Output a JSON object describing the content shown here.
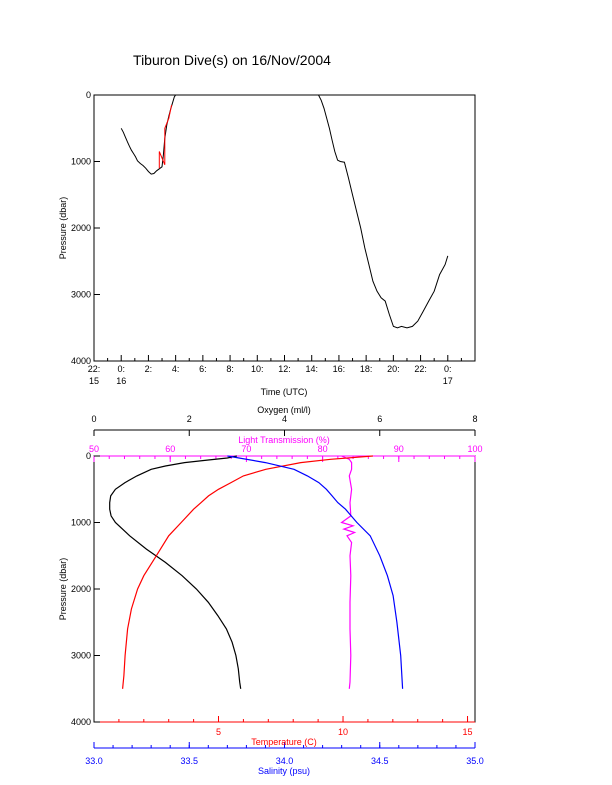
{
  "chart_data": [
    {
      "type": "line",
      "title": "Tiburon Dive(s) on 16/Nov/2004",
      "xlabel": "Time (UTC)",
      "ylabel": "Pressure (dbar)",
      "x_unit": "hours since 0:00 UTC 16/Nov/2004",
      "xlim": [
        -2,
        26
      ],
      "ylim": [
        4000,
        0
      ],
      "x_tick_labels": [
        {
          "x": -2,
          "line1": "22:",
          "line2": "15"
        },
        {
          "x": 0,
          "line1": "0:",
          "line2": "16"
        },
        {
          "x": 2,
          "line1": "2:",
          "line2": ""
        },
        {
          "x": 4,
          "line1": "4:",
          "line2": ""
        },
        {
          "x": 6,
          "line1": "6:",
          "line2": ""
        },
        {
          "x": 8,
          "line1": "8:",
          "line2": ""
        },
        {
          "x": 10,
          "line1": "10:",
          "line2": ""
        },
        {
          "x": 12,
          "line1": "12:",
          "line2": ""
        },
        {
          "x": 14,
          "line1": "14:",
          "line2": ""
        },
        {
          "x": 16,
          "line1": "16:",
          "line2": ""
        },
        {
          "x": 18,
          "line1": "18:",
          "line2": ""
        },
        {
          "x": 20,
          "line1": "20:",
          "line2": ""
        },
        {
          "x": 22,
          "line1": "22:",
          "line2": ""
        },
        {
          "x": 24,
          "line1": "0:",
          "line2": "17"
        }
      ],
      "y_ticks": [
        "0",
        "1000",
        "2000",
        "3000",
        "4000"
      ],
      "series": [
        {
          "color": "#000000",
          "x": [
            0.0,
            0.15,
            0.3,
            0.45,
            0.6,
            0.75,
            0.9,
            1.05,
            1.2,
            1.4,
            1.6,
            1.8,
            2.0,
            2.2,
            2.4,
            2.6,
            2.8,
            3.0,
            3.1,
            3.2,
            3.35,
            3.5,
            3.65,
            3.8,
            3.9,
            4.0
          ],
          "y": [
            500,
            560,
            630,
            700,
            770,
            830,
            880,
            930,
            990,
            1030,
            1060,
            1100,
            1150,
            1190,
            1180,
            1140,
            1110,
            1080,
            900,
            650,
            450,
            320,
            200,
            100,
            30,
            0
          ]
        },
        {
          "color": "#000000",
          "x": [
            4.0,
            14.5,
            14.7,
            14.9,
            15.1,
            15.3,
            15.5,
            15.7,
            15.9,
            16.1,
            16.4,
            16.7,
            17.0,
            17.3,
            17.6,
            17.9,
            18.2,
            18.5,
            18.8,
            19.1,
            19.4,
            19.7,
            20.0,
            20.3,
            20.6,
            21.0,
            21.4,
            21.8,
            22.2,
            22.6,
            23.0,
            23.4,
            23.8,
            24.0
          ],
          "y": [
            0,
            0,
            80,
            200,
            350,
            500,
            680,
            850,
            980,
            1000,
            1010,
            1250,
            1500,
            1750,
            2000,
            2300,
            2550,
            2800,
            2950,
            3050,
            3100,
            3300,
            3480,
            3500,
            3480,
            3500,
            3480,
            3400,
            3250,
            3100,
            2950,
            2700,
            2550,
            2420
          ]
        },
        {
          "color": "#ff0000",
          "x": [
            2.8,
            2.8,
            3.2,
            3.2,
            3.5,
            3.7
          ],
          "y": [
            1100,
            850,
            1050,
            500,
            350,
            150
          ]
        }
      ]
    },
    {
      "type": "line",
      "ylabel": "Pressure (dbar)",
      "ylim": [
        4000,
        0
      ],
      "y_ticks": [
        "0",
        "1000",
        "2000",
        "3000",
        "4000"
      ],
      "axes": {
        "oxygen": {
          "label": "Oxygen (ml/l)",
          "range": [
            0,
            8
          ],
          "ticks": [
            "0",
            "2",
            "4",
            "6",
            "8"
          ],
          "color": "#000000"
        },
        "light": {
          "label": "Light Transmission (%)",
          "range": [
            50,
            100
          ],
          "ticks": [
            "50",
            "60",
            "70",
            "80",
            "90",
            "100"
          ],
          "color": "#ff00ff"
        },
        "temperature": {
          "label": "Temperature (C)",
          "range": [
            0,
            15.3
          ],
          "ticks": [
            "5",
            "10",
            "15"
          ],
          "tick_values": [
            5,
            10,
            15
          ],
          "color": "#ff0000"
        },
        "salinity": {
          "label": "Salinity (psu)",
          "range": [
            33.0,
            35.0
          ],
          "ticks": [
            "33.0",
            "33.5",
            "34.0",
            "34.5",
            "35.0"
          ],
          "color": "#0000ff"
        }
      },
      "series": [
        {
          "axis": "oxygen",
          "color": "#000000",
          "p": [
            0,
            30,
            60,
            100,
            150,
            200,
            300,
            400,
            500,
            600,
            700,
            800,
            900,
            1000,
            1200,
            1400,
            1600,
            1800,
            2000,
            2200,
            2400,
            2600,
            2800,
            3000,
            3200,
            3400,
            3500
          ],
          "values": [
            3.0,
            2.8,
            2.4,
            1.9,
            1.5,
            1.2,
            0.9,
            0.65,
            0.45,
            0.35,
            0.33,
            0.33,
            0.36,
            0.45,
            0.75,
            1.1,
            1.5,
            1.85,
            2.15,
            2.4,
            2.6,
            2.78,
            2.9,
            2.98,
            3.03,
            3.06,
            3.08
          ]
        },
        {
          "axis": "light",
          "color": "#ff00ff",
          "p": [
            0,
            50,
            100,
            200,
            300,
            500,
            700,
            900,
            1000,
            1050,
            1100,
            1150,
            1200,
            1300,
            1500,
            1800,
            2200,
            2600,
            3000,
            3400,
            3500
          ],
          "values": [
            82.5,
            83.5,
            83.8,
            83.8,
            83.5,
            83.8,
            83.6,
            83.7,
            82.5,
            84,
            82.8,
            84.2,
            83.2,
            83.8,
            83.6,
            83.7,
            83.6,
            83.6,
            83.7,
            83.6,
            83.5
          ]
        },
        {
          "axis": "temperature",
          "color": "#ff0000",
          "p": [
            0,
            50,
            100,
            200,
            300,
            400,
            500,
            600,
            700,
            800,
            1000,
            1200,
            1500,
            1800,
            2000,
            2300,
            2600,
            3000,
            3300,
            3500
          ],
          "values": [
            11.2,
            9.5,
            8.3,
            6.9,
            6.0,
            5.5,
            5.0,
            4.6,
            4.3,
            4.0,
            3.5,
            3.0,
            2.5,
            2.0,
            1.75,
            1.5,
            1.35,
            1.25,
            1.2,
            1.15
          ]
        },
        {
          "axis": "salinity",
          "color": "#0000ff",
          "p": [
            0,
            100,
            200,
            300,
            400,
            500,
            600,
            700,
            800,
            900,
            1000,
            1200,
            1500,
            1800,
            2100,
            2500,
            3000,
            3500
          ],
          "values": [
            33.7,
            33.9,
            34.05,
            34.12,
            34.18,
            34.22,
            34.25,
            34.28,
            34.32,
            34.35,
            34.38,
            34.45,
            34.5,
            34.54,
            34.57,
            34.59,
            34.61,
            34.62
          ]
        }
      ]
    }
  ]
}
